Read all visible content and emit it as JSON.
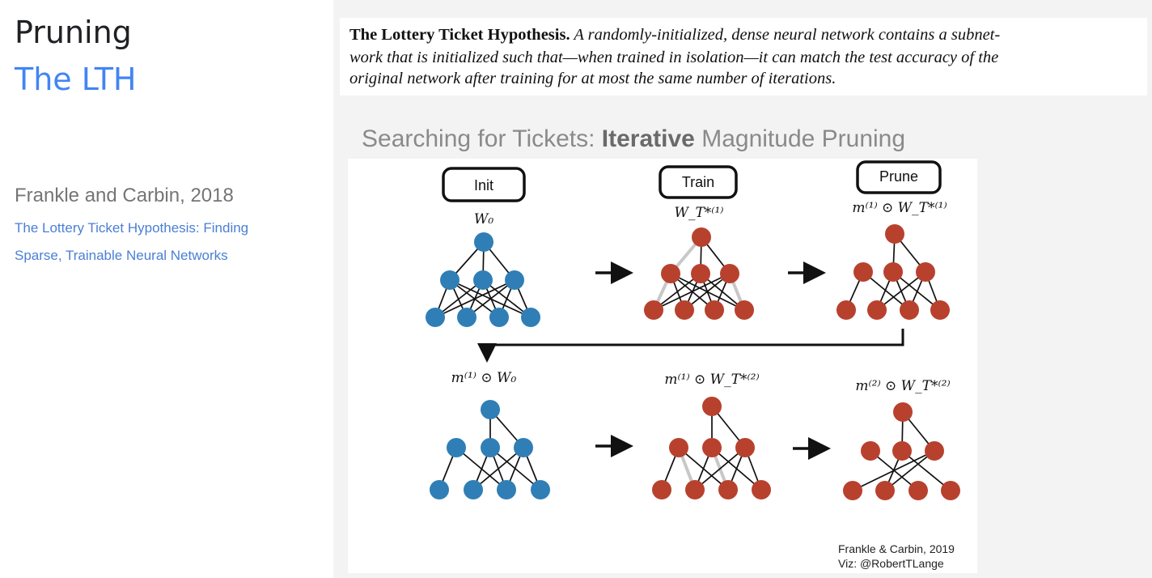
{
  "slide": {
    "title": "Pruning",
    "subtitle": "The LTH",
    "authors": "Frankle and Carbin, 2018",
    "paper_title_lines": [
      "The Lottery Ticket Hypothesis: Finding",
      "Sparse, Trainable Neural Networks"
    ],
    "colors": {
      "accent": "#4285f4",
      "link": "#4a7fd4"
    }
  },
  "definition": {
    "term": "The Lottery Ticket Hypothesis.",
    "line1": "A randomly-initialized, dense neural network contains a subnet-",
    "line2": "work that is initialized such that—when trained in isolation—it can match the test accuracy of the",
    "line3": "original network after training for at most the same number of iterations."
  },
  "section": {
    "heading_prefix": "Searching for Tickets: ",
    "heading_bold": "Iterative",
    "heading_suffix": " Magnitude Pruning"
  },
  "figure": {
    "steps": [
      "Init",
      "Train",
      "Prune"
    ],
    "top_formulas": [
      "W₀",
      "W_T*⁽¹⁾",
      "m⁽¹⁾ ⊙ W_T*⁽¹⁾"
    ],
    "bottom_formulas": [
      "m⁽¹⁾ ⊙ W₀",
      "m⁽¹⁾ ⊙ W_T*⁽²⁾",
      "m⁽²⁾ ⊙ W_T*⁽²⁾"
    ],
    "credit_lines": [
      "Frankle & Carbin, 2019",
      "Viz: @RobertTLange"
    ],
    "colors": {
      "init_node": "#2f7fb6",
      "trained_node": "#b8412e",
      "edge": "#111111",
      "faded_edge": "#c8c8c8"
    }
  }
}
